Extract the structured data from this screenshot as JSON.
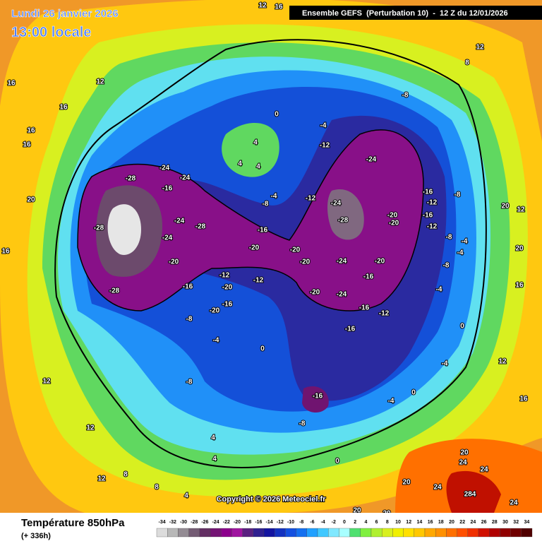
{
  "header": {
    "date": "Lundi 26 janvier 2026",
    "time": "13:00 locale",
    "run": "Ensemble GEFS  (Perturbation 10)  -  12 Z du 12/01/2026"
  },
  "footer": {
    "parameter": "Température 850hPa",
    "lead": "(+ 336h)",
    "copyright": "Copyright © 2026 Meteociel.fr"
  },
  "legend": {
    "ticks": [
      -34,
      -32,
      -30,
      -28,
      -26,
      -24,
      -22,
      -20,
      -18,
      -16,
      -14,
      -12,
      -10,
      -8,
      -6,
      -4,
      -2,
      0,
      2,
      4,
      6,
      8,
      10,
      12,
      14,
      16,
      18,
      20,
      22,
      24,
      26,
      28,
      30,
      32,
      34
    ],
    "colors": [
      "#dcdcdc",
      "#b8b8b8",
      "#948c94",
      "#745c74",
      "#643064",
      "#741474",
      "#8c008c",
      "#a014a0",
      "#5a2080",
      "#302090",
      "#1414a0",
      "#1432c0",
      "#1450e0",
      "#1470f0",
      "#20a0ff",
      "#40c8ff",
      "#80e8ff",
      "#a8ffff",
      "#50e070",
      "#80f040",
      "#b0f030",
      "#d8f020",
      "#f0f000",
      "#ffe000",
      "#ffc800",
      "#ffa800",
      "#ff9000",
      "#ff7000",
      "#ff5000",
      "#f03000",
      "#d01000",
      "#b00000",
      "#900000",
      "#700000",
      "#500000"
    ]
  },
  "map_labels": [
    "12",
    "16",
    "16",
    "12",
    "16",
    "16",
    "16",
    "20",
    "16",
    "12",
    "12",
    "12",
    "8",
    "8",
    "4",
    "4",
    "0",
    "-8",
    "-4",
    "-8",
    "-20",
    "-16",
    "-12",
    "-20",
    "-16",
    "-20",
    "-28",
    "-28",
    "-28",
    "-24",
    "-16",
    "-24",
    "-24",
    "-28",
    "-24",
    "-20",
    "-16",
    "-12",
    "-8",
    "-4",
    "-12",
    "-12",
    "-4",
    "0",
    "4",
    "4",
    "4",
    "-8",
    "-24",
    "-24",
    "-28",
    "-20",
    "-20",
    "-24",
    "-20",
    "-24",
    "-20",
    "-16",
    "-16",
    "-12",
    "-16",
    "-20",
    "-20",
    "-16",
    "-12",
    "-8",
    "-16",
    "-12",
    "-8",
    "-4",
    "-4",
    "-8",
    "-4",
    "0",
    "-4",
    "-4",
    "0",
    "-8",
    "-16",
    "0",
    "4",
    "20",
    "12",
    "20",
    "16",
    "12",
    "16",
    "20",
    "24",
    "24",
    "20",
    "24",
    "284",
    "24",
    "20",
    "20",
    "12",
    "8"
  ]
}
